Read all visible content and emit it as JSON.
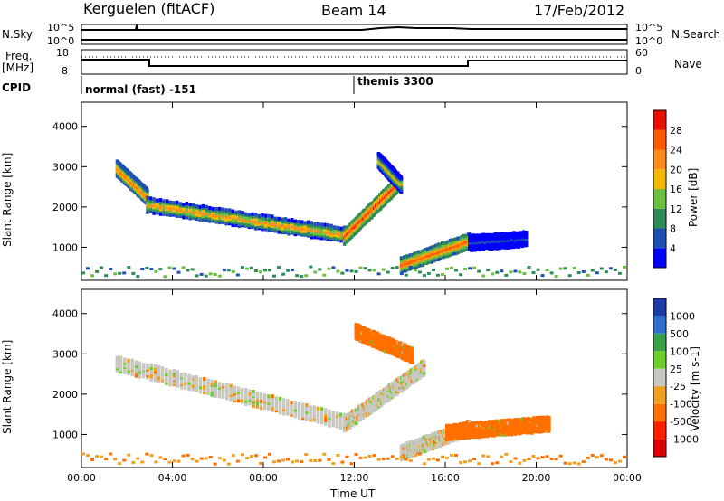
{
  "header": {
    "station": "Kerguelen (fitACF)",
    "beam": "Beam 14",
    "date": "17/Feb/2012"
  },
  "sky_panel": {
    "left_label": "N.Sky",
    "right_label": "N.Search",
    "left_ticks": [
      "10^5",
      "10^0"
    ],
    "right_ticks": [
      "10^5",
      "10^0"
    ]
  },
  "freq_panel": {
    "left_label_1": "Freq.",
    "left_label_2": "[MHz]",
    "right_label": "Nave",
    "left_ticks": [
      "18",
      "8"
    ],
    "right_ticks": [
      "60",
      "0"
    ]
  },
  "cpid_panel": {
    "label": "CPID",
    "modes": [
      "normal (fast) -151",
      "themis 3300"
    ]
  },
  "chart_data": [
    {
      "type": "heatmap",
      "quantity": "Power",
      "xlabel": "",
      "ylabel": "Slant Range [km]",
      "xlim": [
        0,
        24
      ],
      "ylim": [
        180,
        4600
      ],
      "yticks": [
        1000,
        2000,
        3000,
        4000
      ],
      "colorbar": {
        "label": "Power [dB]",
        "levels": [
          0,
          4,
          8,
          12,
          16,
          20,
          24,
          28,
          32
        ],
        "tick_labels": [
          "4",
          "8",
          "12",
          "16",
          "20",
          "24",
          "28"
        ],
        "colors": [
          "#0000ff",
          "#1f4fb5",
          "#2e8b57",
          "#6cbf3f",
          "#f5b800",
          "#ff8c1a",
          "#ff5a00",
          "#e81000"
        ]
      },
      "echo_bands": [
        {
          "start_time": "01:30",
          "end_time": "02:50",
          "range_start": 3000,
          "range_end": 2300,
          "power_db": 24
        },
        {
          "start_time": "02:50",
          "end_time": "11:30",
          "range_start": 2100,
          "range_end": 1350,
          "power_db": 22
        },
        {
          "start_time": "11:30",
          "end_time": "13:50",
          "range_start": 1300,
          "range_end": 2600,
          "power_db": 28
        },
        {
          "start_time": "13:00",
          "end_time": "14:00",
          "range_start": 3200,
          "range_end": 2600,
          "power_db": 18
        },
        {
          "start_time": "14:00",
          "end_time": "17:00",
          "range_start": 600,
          "range_end": 1200,
          "power_db": 26
        },
        {
          "start_time": "17:00",
          "end_time": "19:30",
          "range_start": 1150,
          "range_end": 1250,
          "power_db": 6
        }
      ]
    },
    {
      "type": "heatmap",
      "quantity": "Velocity",
      "xlabel": "Time UT",
      "ylabel": "Slant Range [km]",
      "xlim": [
        0,
        24
      ],
      "ylim": [
        180,
        4600
      ],
      "yticks": [
        1000,
        2000,
        3000,
        4000
      ],
      "xticks": [
        "00:00",
        "04:00",
        "08:00",
        "12:00",
        "16:00",
        "20:00",
        "00:00"
      ],
      "colorbar": {
        "label": "Velocity [m s-1]",
        "tick_labels": [
          "1000",
          "500",
          "100",
          "25",
          "-25",
          "-100",
          "-500",
          "-1000"
        ],
        "colors": [
          "#1c3aa8",
          "#2e6ed1",
          "#3aa04a",
          "#6ccf2c",
          "#c8c8c0",
          "#f0a020",
          "#ff7000",
          "#ff2000",
          "#dd0000"
        ]
      },
      "echo_bands": [
        {
          "start_time": "01:30",
          "end_time": "11:30",
          "range_start": 2800,
          "range_end": 1350,
          "velocity_ms": 0
        },
        {
          "start_time": "11:30",
          "end_time": "15:00",
          "range_start": 1300,
          "range_end": 2700,
          "velocity_ms": 0
        },
        {
          "start_time": "12:00",
          "end_time": "14:30",
          "range_start": 3600,
          "range_end": 3000,
          "velocity_ms": -200
        },
        {
          "start_time": "14:00",
          "end_time": "17:00",
          "range_start": 600,
          "range_end": 1200,
          "velocity_ms": 0
        },
        {
          "start_time": "16:00",
          "end_time": "20:30",
          "range_start": 1100,
          "range_end": 1300,
          "velocity_ms": -150
        }
      ]
    }
  ]
}
